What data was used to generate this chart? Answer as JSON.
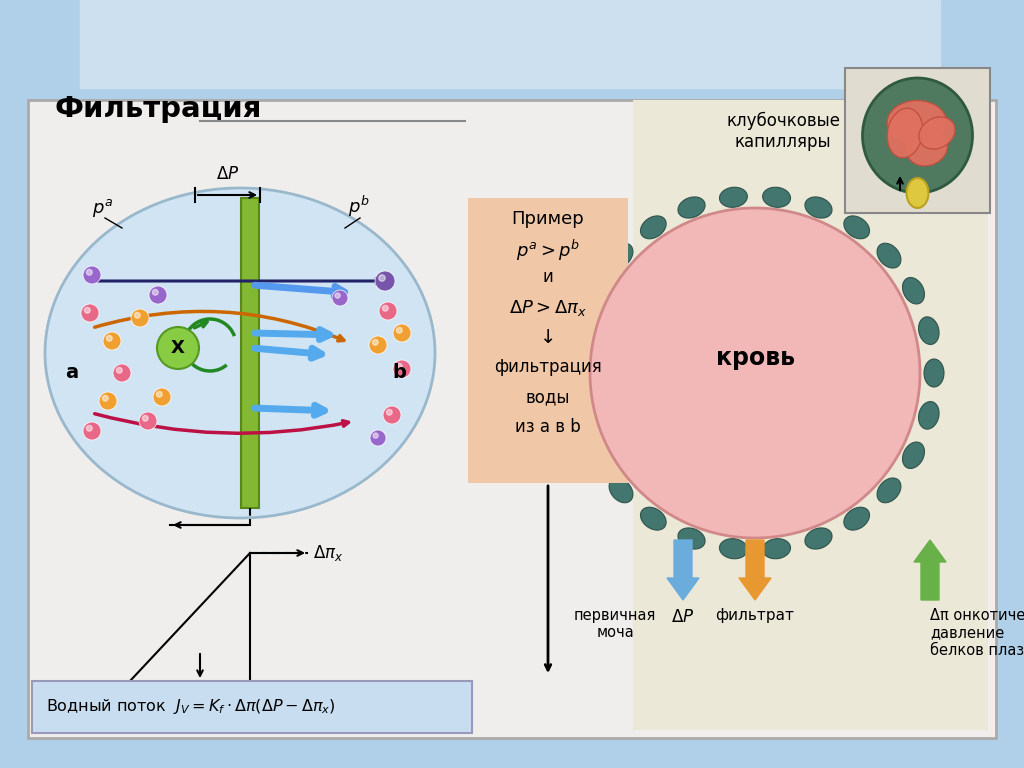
{
  "title": "Фильтрация",
  "bg_top": "#b0cfe8",
  "bg_top2": "#cce0f0",
  "panel_bg": "#f0eeec",
  "panel_edge": "#aaaaaa",
  "ellipse_fill": "#d0e4f4",
  "ellipse_edge": "#9ab8cc",
  "membrane_fill": "#82b832",
  "membrane_edge": "#5a8818",
  "formula_bg": "#c8ddf0",
  "formula_edge": "#9999bb",
  "primer_bg": "#f0c8a8",
  "primer_edge": "#d8aa80",
  "right_bg": "#e8e0c8",
  "blood_fill": "#f2b8b8",
  "blood_edge": "#d08888",
  "tissue_fill": "#3a7068",
  "arrow_dp": "#6aacdc",
  "arrow_filt": "#e89830",
  "arrow_onco": "#68b048",
  "particles": {
    "pink": "#e86888",
    "orange": "#f0a030",
    "purple": "#9966cc",
    "violet": "#7755aa"
  },
  "primer_title": "Пример",
  "krov_text": "кровь",
  "klubochnye_text": "клубочковые\nкапилляры",
  "pervichnaya": "первичная\nмоча",
  "filtrat": "фильтрат",
  "onco": "Δπ онкотическое\nдавление\nбелков плазмы"
}
